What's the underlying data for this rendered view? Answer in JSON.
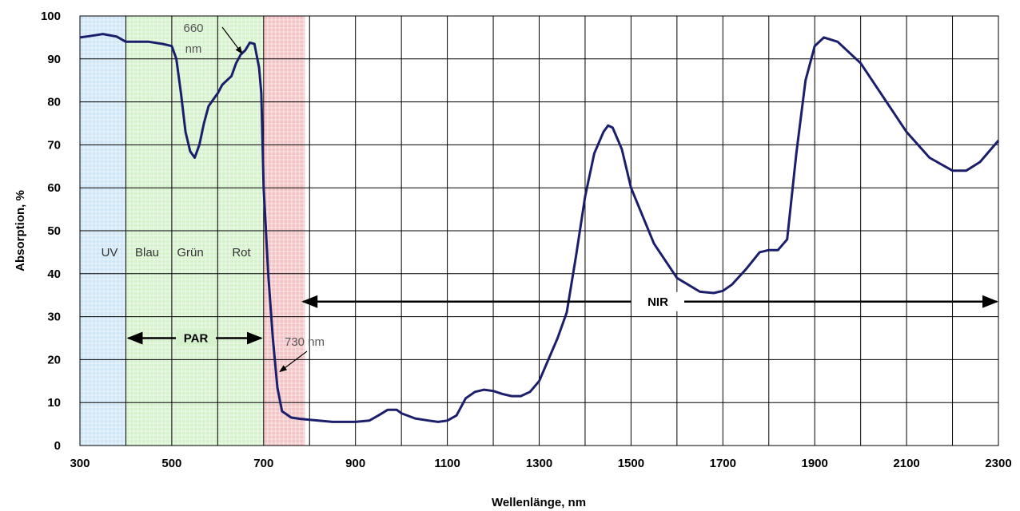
{
  "chart_data": {
    "type": "line",
    "xlabel": "Wellenlänge, nm",
    "ylabel": "Absorption, %",
    "xlim": [
      300,
      2300
    ],
    "ylim": [
      0,
      100
    ],
    "x_ticks": [
      300,
      500,
      700,
      900,
      1100,
      1300,
      1500,
      1700,
      1900,
      2100,
      2300
    ],
    "x_minor_gridlines": [
      400,
      600,
      800,
      1000,
      1200,
      1400,
      1600,
      1800,
      2000,
      2200
    ],
    "y_ticks": [
      0,
      10,
      20,
      30,
      40,
      50,
      60,
      70,
      80,
      90,
      100
    ],
    "grid": true,
    "line_color": "#1b1f6b",
    "regions": [
      {
        "label": "UV",
        "from": 300,
        "to": 400,
        "color": "#cfe6f7"
      },
      {
        "label": "Blau Grün Rot",
        "from": 400,
        "to": 700,
        "color": "#d6f2cc"
      },
      {
        "label": "",
        "from": 700,
        "to": 790,
        "color": "#f3c4c6"
      }
    ],
    "region_text": [
      "UV",
      "Blau",
      "Grün",
      "Rot"
    ],
    "par": {
      "label": "PAR",
      "from": 400,
      "to": 700,
      "y": 25
    },
    "nir": {
      "label": "NIR",
      "from": 800,
      "to": 2300,
      "y": 33.5
    },
    "annotations": [
      {
        "text": [
          "660",
          "nm"
        ],
        "x": 660,
        "y": 92
      },
      {
        "text": [
          "730 nm"
        ],
        "x": 730,
        "y": 17
      }
    ],
    "series": [
      {
        "x": [
          300,
          320,
          350,
          380,
          400,
          420,
          450,
          480,
          500,
          510,
          520,
          530,
          540,
          550,
          560,
          570,
          580,
          590,
          600,
          610,
          620,
          630,
          640,
          650,
          660,
          670,
          680,
          690,
          695,
          700,
          705,
          710,
          720,
          730,
          740,
          760,
          780,
          800,
          850,
          900,
          930,
          950,
          970,
          990,
          1000,
          1030,
          1060,
          1080,
          1100,
          1120,
          1140,
          1160,
          1180,
          1200,
          1220,
          1240,
          1260,
          1280,
          1300,
          1320,
          1340,
          1360,
          1380,
          1400,
          1420,
          1440,
          1450,
          1460,
          1480,
          1500,
          1550,
          1600,
          1650,
          1680,
          1700,
          1720,
          1750,
          1780,
          1800,
          1820,
          1840,
          1860,
          1880,
          1900,
          1920,
          1950,
          2000,
          2050,
          2100,
          2150,
          2200,
          2230,
          2260,
          2300
        ],
        "y": [
          95,
          95.3,
          95.8,
          95.2,
          94,
          94,
          94,
          93.5,
          93,
          90,
          82,
          73,
          68.5,
          67,
          70,
          75,
          79,
          80.5,
          82,
          84,
          85,
          86,
          89,
          91,
          92,
          93.8,
          93.5,
          88,
          82,
          60,
          50,
          40,
          25,
          13.5,
          8,
          6.5,
          6.2,
          6,
          5.5,
          5.5,
          5.8,
          7,
          8.3,
          8.3,
          7.5,
          6.3,
          5.8,
          5.5,
          5.8,
          7,
          11,
          12.5,
          13,
          12.7,
          12,
          11.5,
          11.5,
          12.5,
          15,
          20,
          25,
          31,
          44,
          58,
          68,
          73,
          74.5,
          74,
          69,
          60,
          47,
          39,
          35.8,
          35.5,
          36,
          37.5,
          41,
          45,
          45.5,
          45.5,
          48,
          68,
          85,
          93,
          95,
          94,
          89,
          81,
          73,
          67,
          64,
          64,
          66,
          71
        ]
      }
    ]
  }
}
